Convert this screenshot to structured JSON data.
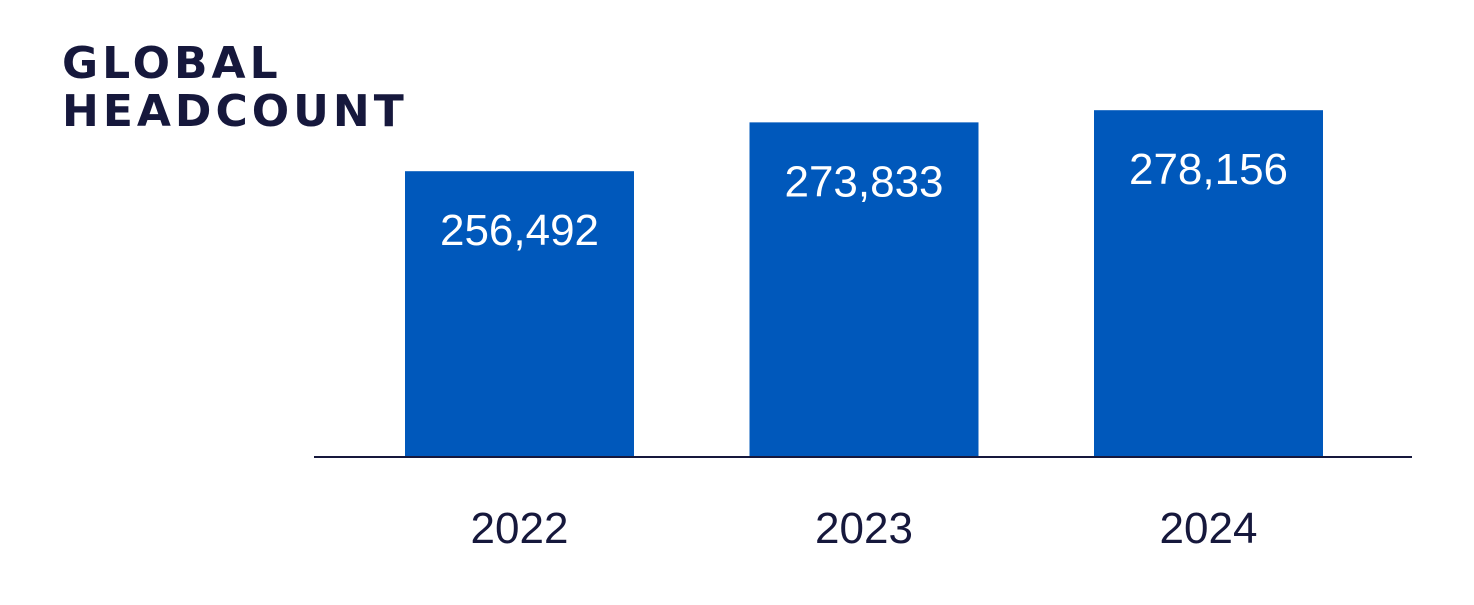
{
  "chart_data": {
    "type": "bar",
    "title": [
      "GLOBAL",
      "HEADCOUNT"
    ],
    "categories": [
      "2022",
      "2023",
      "2024"
    ],
    "values": [
      256492,
      273833,
      278156
    ],
    "value_labels": [
      "256,492",
      "273,833",
      "278,156"
    ],
    "xlabel": "",
    "ylabel": "",
    "ylim": [
      155000,
      280000
    ],
    "grid": false,
    "legend": "none",
    "colors": {
      "bar": "#0058bb",
      "label": "#ffffff",
      "text": "#16183c",
      "axis": "#16183c"
    }
  }
}
